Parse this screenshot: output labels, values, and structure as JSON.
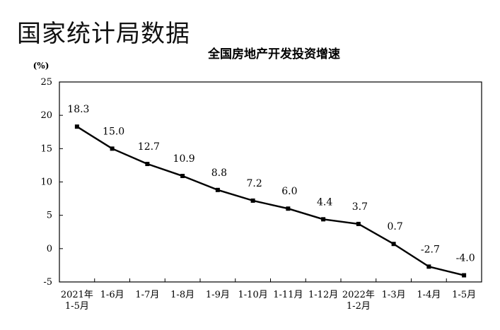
{
  "watermark": "国家统计局数据",
  "chart_data": {
    "type": "line",
    "title": "全国房地产开发投资增速",
    "ylabel": "(%)",
    "xlabel": "",
    "ylim": [
      -5,
      25
    ],
    "yticks": [
      25,
      20,
      15,
      10,
      5,
      0,
      -5
    ],
    "categories": [
      [
        "2021年",
        "1-5月"
      ],
      [
        "1-6月"
      ],
      [
        "1-7月"
      ],
      [
        "1-8月"
      ],
      [
        "1-9月"
      ],
      [
        "1-10月"
      ],
      [
        "1-11月"
      ],
      [
        "1-12月"
      ],
      [
        "2022年",
        "1-2月"
      ],
      [
        "1-3月"
      ],
      [
        "1-4月"
      ],
      [
        "1-5月"
      ]
    ],
    "values": [
      18.3,
      15.0,
      12.7,
      10.9,
      8.8,
      7.2,
      6.0,
      4.4,
      3.7,
      0.7,
      -2.7,
      -4.0
    ],
    "value_labels": [
      "18.3",
      "15.0",
      "12.7",
      "10.9",
      "8.8",
      "7.2",
      "6.0",
      "4.4",
      "3.7",
      "0.7",
      "-2.7",
      "-4.0"
    ],
    "line_color": "#000000",
    "grid": false,
    "legend": "none"
  }
}
